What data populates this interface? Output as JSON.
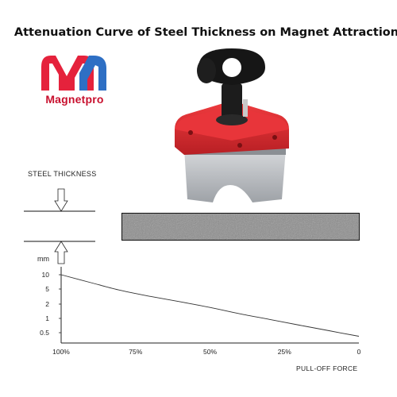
{
  "title": "Attenuation Curve of Steel Thickness on Magnet Attraction",
  "brand": {
    "name": "Magnetpro",
    "colors": {
      "red": "#e5223c",
      "blue": "#2e6fc4",
      "text": "#c8102e"
    }
  },
  "product_image": {
    "icon": "magnet-icon",
    "body_color": "#d92b2f",
    "base_color": "#b9bcc1",
    "handle_color": "#151515"
  },
  "steel_thickness_label": "STEEL THICKNESS",
  "chart_data": {
    "type": "line",
    "ylabel": "mm",
    "xlabel": "PULL-OFF FORCE",
    "y_ticks": [
      "10",
      "5",
      "2",
      "1",
      "0.5"
    ],
    "x_ticks": [
      "100%",
      "75%",
      "50%",
      "25%",
      "0"
    ],
    "x_tick_values": [
      100,
      75,
      50,
      25,
      0
    ],
    "y_tick_values": [
      10,
      5,
      2,
      1,
      0.5
    ],
    "y_scale": "log",
    "series": [
      {
        "x": [
          100,
          90,
          80,
          70,
          60,
          50,
          40,
          30,
          20,
          10,
          0
        ],
        "y": [
          10,
          6.8,
          4.6,
          3.2,
          2.3,
          1.7,
          1.25,
          0.95,
          0.72,
          0.55,
          0.42
        ]
      }
    ]
  }
}
